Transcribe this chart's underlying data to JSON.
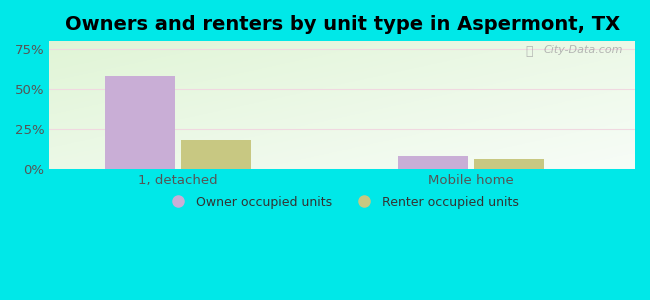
{
  "title": "Owners and renters by unit type in Aspermont, TX",
  "categories": [
    "1, detached",
    "Mobile home"
  ],
  "owner_values": [
    58.0,
    8.0
  ],
  "renter_values": [
    18.0,
    6.0
  ],
  "owner_color": "#c9aed6",
  "renter_color": "#c8c882",
  "background_outer": "#00e8e8",
  "yticks": [
    0,
    25,
    50,
    75
  ],
  "ylim": [
    0,
    80
  ],
  "bar_width": 0.12,
  "group_centers": [
    0.22,
    0.72
  ],
  "xlim": [
    0.0,
    1.0
  ],
  "legend_labels": [
    "Owner occupied units",
    "Renter occupied units"
  ],
  "watermark": "City-Data.com",
  "title_fontsize": 14,
  "tick_fontsize": 9.5
}
